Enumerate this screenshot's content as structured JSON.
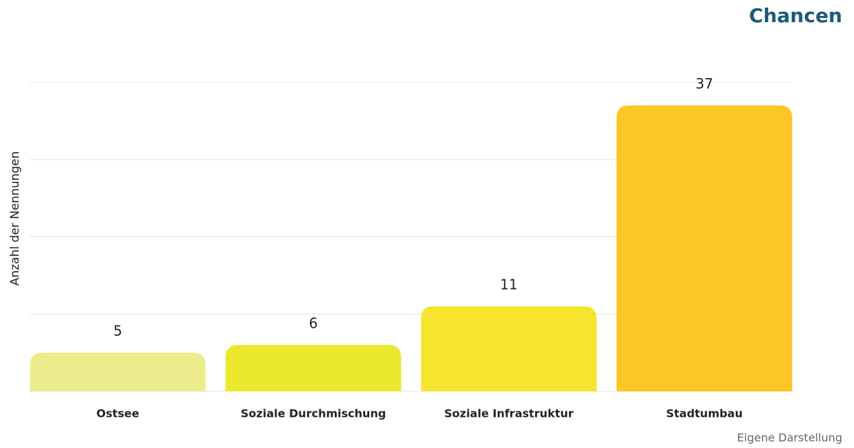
{
  "chart_data": {
    "type": "bar",
    "title": "Chancen",
    "y_label": "Anzahl der Nennungen",
    "note": "Eigene Darstellung",
    "categories": [
      "Ostsee",
      "Soziale Durchmischung",
      "Soziale Infrastruktur",
      "Stadtumbau"
    ],
    "values": [
      5,
      6,
      11,
      37
    ],
    "colors": [
      "#ecec8c",
      "#ebe92e",
      "#f5e52e",
      "#fdc627"
    ],
    "ylim": [
      0,
      40
    ],
    "yticks": [
      0,
      10,
      20,
      30,
      40
    ],
    "grid": true
  }
}
